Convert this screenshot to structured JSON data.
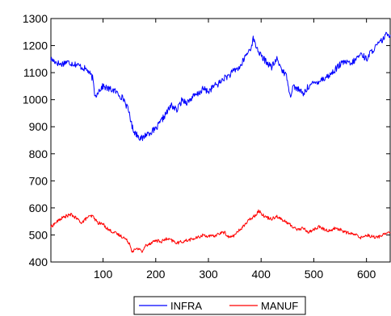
{
  "chart_data": {
    "type": "line",
    "title": "",
    "xlabel": "",
    "ylabel": "",
    "xlim": [
      1,
      645
    ],
    "ylim": [
      400,
      1300
    ],
    "x_ticks": [
      100,
      200,
      300,
      400,
      500,
      600
    ],
    "y_ticks": [
      400,
      500,
      600,
      700,
      800,
      900,
      1000,
      1100,
      1200,
      1300
    ],
    "grid": false,
    "legend_position": "bottom-center",
    "series": [
      {
        "name": "INFRA",
        "color": "#0000ff",
        "x": [
          1,
          10,
          20,
          30,
          40,
          50,
          60,
          70,
          80,
          85,
          90,
          100,
          110,
          120,
          130,
          140,
          150,
          155,
          160,
          170,
          175,
          180,
          190,
          200,
          210,
          220,
          230,
          240,
          250,
          260,
          270,
          280,
          290,
          300,
          310,
          320,
          330,
          340,
          350,
          360,
          370,
          380,
          385,
          390,
          400,
          410,
          420,
          430,
          440,
          450,
          455,
          460,
          470,
          480,
          490,
          500,
          510,
          520,
          530,
          540,
          550,
          560,
          570,
          580,
          590,
          600,
          610,
          620,
          630,
          640,
          645
        ],
        "values": [
          1150,
          1140,
          1130,
          1140,
          1135,
          1130,
          1120,
          1110,
          1080,
          1010,
          1030,
          1050,
          1040,
          1035,
          1020,
          1000,
          950,
          900,
          880,
          860,
          855,
          870,
          880,
          890,
          920,
          950,
          980,
          960,
          1000,
          990,
          1010,
          1020,
          1040,
          1030,
          1050,
          1060,
          1080,
          1090,
          1110,
          1120,
          1160,
          1190,
          1225,
          1200,
          1160,
          1140,
          1120,
          1150,
          1110,
          1080,
          1010,
          1050,
          1040,
          1020,
          1050,
          1060,
          1070,
          1080,
          1090,
          1110,
          1130,
          1140,
          1130,
          1150,
          1170,
          1150,
          1180,
          1200,
          1220,
          1245,
          1240
        ]
      },
      {
        "name": "MANUF",
        "color": "#ff0000",
        "x": [
          1,
          10,
          20,
          30,
          40,
          50,
          60,
          70,
          80,
          90,
          100,
          110,
          120,
          130,
          140,
          150,
          155,
          160,
          170,
          175,
          180,
          190,
          200,
          210,
          220,
          230,
          240,
          250,
          260,
          270,
          280,
          290,
          300,
          310,
          320,
          330,
          340,
          350,
          360,
          370,
          380,
          390,
          395,
          400,
          410,
          420,
          430,
          440,
          450,
          460,
          470,
          480,
          490,
          500,
          510,
          520,
          530,
          540,
          550,
          560,
          570,
          580,
          590,
          600,
          610,
          620,
          630,
          640,
          645
        ],
        "values": [
          530,
          545,
          560,
          570,
          575,
          560,
          545,
          565,
          570,
          545,
          540,
          520,
          510,
          500,
          490,
          470,
          440,
          445,
          450,
          435,
          460,
          470,
          480,
          475,
          485,
          480,
          470,
          475,
          480,
          485,
          490,
          500,
          495,
          495,
          505,
          510,
          490,
          500,
          520,
          540,
          560,
          575,
          590,
          580,
          565,
          560,
          570,
          555,
          545,
          530,
          520,
          525,
          510,
          520,
          530,
          520,
          515,
          525,
          520,
          510,
          505,
          500,
          490,
          500,
          495,
          490,
          500,
          510,
          510
        ]
      }
    ]
  }
}
